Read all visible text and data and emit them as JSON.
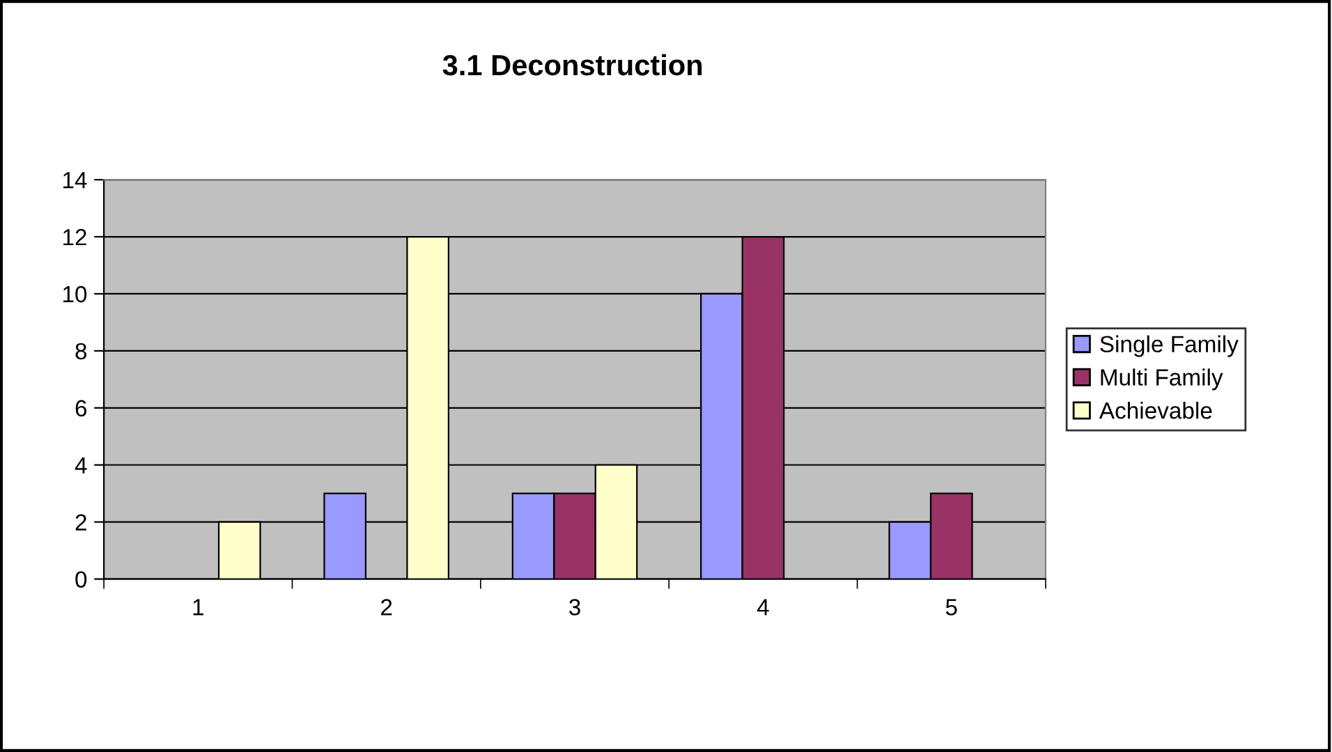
{
  "chart_data": {
    "type": "bar",
    "title": "3.1 Deconstruction",
    "categories": [
      "1",
      "2",
      "3",
      "4",
      "5"
    ],
    "series": [
      {
        "name": "Single Family",
        "color": "#9999ff",
        "values": [
          null,
          3,
          3,
          10,
          2
        ]
      },
      {
        "name": "Multi Family",
        "color": "#993366",
        "values": [
          null,
          null,
          3,
          12,
          3
        ]
      },
      {
        "name": "Achievable",
        "color": "#ffffcc",
        "values": [
          2,
          12,
          4,
          null,
          null
        ]
      }
    ],
    "ylim": [
      0,
      14
    ],
    "yticks": [
      0,
      2,
      4,
      6,
      8,
      10,
      12,
      14
    ],
    "grid": "y",
    "legend": "right"
  }
}
